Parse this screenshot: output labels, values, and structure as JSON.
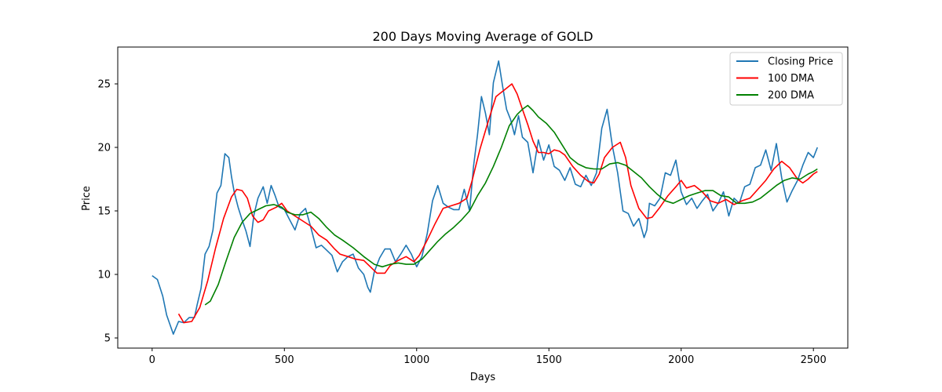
{
  "chart_data": {
    "type": "line",
    "title": "200 Days Moving Average of GOLD",
    "xlabel": "Days",
    "ylabel": "Price",
    "xlim": [
      -130,
      2630
    ],
    "ylim": [
      4.2,
      27.9
    ],
    "xticks": [
      0,
      500,
      1000,
      1500,
      2000,
      2500
    ],
    "yticks": [
      5,
      10,
      15,
      20,
      25
    ],
    "grid": false,
    "legend_position": "top-right",
    "series": [
      {
        "name": "Closing Price",
        "color": "#1f77b4",
        "points": [
          [
            0,
            9.9
          ],
          [
            20,
            9.6
          ],
          [
            40,
            8.3
          ],
          [
            55,
            6.8
          ],
          [
            65,
            6.2
          ],
          [
            80,
            5.3
          ],
          [
            100,
            6.3
          ],
          [
            120,
            6.2
          ],
          [
            140,
            6.6
          ],
          [
            160,
            6.6
          ],
          [
            170,
            7.6
          ],
          [
            185,
            8.9
          ],
          [
            200,
            11.6
          ],
          [
            215,
            12.2
          ],
          [
            230,
            13.5
          ],
          [
            245,
            16.4
          ],
          [
            260,
            17.0
          ],
          [
            275,
            19.5
          ],
          [
            290,
            19.2
          ],
          [
            300,
            17.7
          ],
          [
            310,
            16.5
          ],
          [
            325,
            15.3
          ],
          [
            340,
            14.3
          ],
          [
            355,
            13.4
          ],
          [
            370,
            12.2
          ],
          [
            385,
            14.7
          ],
          [
            400,
            16.0
          ],
          [
            420,
            16.9
          ],
          [
            435,
            15.6
          ],
          [
            450,
            17.0
          ],
          [
            465,
            16.2
          ],
          [
            480,
            15.3
          ],
          [
            500,
            15.1
          ],
          [
            520,
            14.3
          ],
          [
            540,
            13.5
          ],
          [
            560,
            14.8
          ],
          [
            580,
            15.2
          ],
          [
            600,
            13.7
          ],
          [
            620,
            12.1
          ],
          [
            640,
            12.3
          ],
          [
            660,
            11.9
          ],
          [
            680,
            11.5
          ],
          [
            700,
            10.2
          ],
          [
            720,
            11.0
          ],
          [
            740,
            11.4
          ],
          [
            760,
            11.6
          ],
          [
            780,
            10.5
          ],
          [
            800,
            10.0
          ],
          [
            815,
            9.0
          ],
          [
            825,
            8.6
          ],
          [
            840,
            10.2
          ],
          [
            860,
            11.3
          ],
          [
            880,
            12.0
          ],
          [
            900,
            12.0
          ],
          [
            920,
            11.0
          ],
          [
            940,
            11.6
          ],
          [
            960,
            12.3
          ],
          [
            980,
            11.6
          ],
          [
            1000,
            10.6
          ],
          [
            1020,
            11.4
          ],
          [
            1040,
            13.2
          ],
          [
            1060,
            15.8
          ],
          [
            1080,
            17.0
          ],
          [
            1100,
            15.6
          ],
          [
            1120,
            15.3
          ],
          [
            1140,
            15.1
          ],
          [
            1160,
            15.1
          ],
          [
            1180,
            16.7
          ],
          [
            1200,
            15.0
          ],
          [
            1215,
            18.5
          ],
          [
            1230,
            21.0
          ],
          [
            1245,
            24.0
          ],
          [
            1260,
            22.7
          ],
          [
            1275,
            21.0
          ],
          [
            1290,
            25.1
          ],
          [
            1310,
            26.8
          ],
          [
            1325,
            24.8
          ],
          [
            1340,
            23.0
          ],
          [
            1355,
            22.2
          ],
          [
            1370,
            21.0
          ],
          [
            1385,
            22.5
          ],
          [
            1400,
            20.8
          ],
          [
            1420,
            20.4
          ],
          [
            1440,
            18.0
          ],
          [
            1460,
            20.6
          ],
          [
            1480,
            19.0
          ],
          [
            1500,
            20.2
          ],
          [
            1520,
            18.5
          ],
          [
            1540,
            18.2
          ],
          [
            1560,
            17.4
          ],
          [
            1580,
            18.4
          ],
          [
            1600,
            17.1
          ],
          [
            1620,
            16.9
          ],
          [
            1640,
            17.8
          ],
          [
            1660,
            17.0
          ],
          [
            1680,
            18.0
          ],
          [
            1700,
            21.5
          ],
          [
            1720,
            23.0
          ],
          [
            1740,
            20.1
          ],
          [
            1760,
            18.0
          ],
          [
            1780,
            15.0
          ],
          [
            1800,
            14.8
          ],
          [
            1820,
            13.8
          ],
          [
            1840,
            14.4
          ],
          [
            1860,
            12.9
          ],
          [
            1870,
            13.5
          ],
          [
            1880,
            15.6
          ],
          [
            1900,
            15.4
          ],
          [
            1920,
            16.0
          ],
          [
            1940,
            18.0
          ],
          [
            1960,
            17.8
          ],
          [
            1980,
            19.0
          ],
          [
            2000,
            16.5
          ],
          [
            2020,
            15.5
          ],
          [
            2040,
            16.0
          ],
          [
            2060,
            15.2
          ],
          [
            2080,
            15.8
          ],
          [
            2100,
            16.3
          ],
          [
            2120,
            15.0
          ],
          [
            2140,
            15.6
          ],
          [
            2160,
            16.5
          ],
          [
            2180,
            14.6
          ],
          [
            2200,
            16.0
          ],
          [
            2220,
            15.6
          ],
          [
            2240,
            16.9
          ],
          [
            2260,
            17.1
          ],
          [
            2280,
            18.4
          ],
          [
            2300,
            18.6
          ],
          [
            2320,
            19.8
          ],
          [
            2340,
            18.2
          ],
          [
            2360,
            20.3
          ],
          [
            2380,
            17.6
          ],
          [
            2400,
            15.7
          ],
          [
            2420,
            16.6
          ],
          [
            2440,
            17.4
          ],
          [
            2460,
            18.6
          ],
          [
            2480,
            19.6
          ],
          [
            2500,
            19.2
          ],
          [
            2515,
            20.0
          ]
        ]
      },
      {
        "name": "100 DMA",
        "color": "#ff0000",
        "points": [
          [
            100,
            6.9
          ],
          [
            120,
            6.2
          ],
          [
            150,
            6.3
          ],
          [
            180,
            7.4
          ],
          [
            210,
            9.5
          ],
          [
            240,
            12.1
          ],
          [
            270,
            14.4
          ],
          [
            300,
            16.1
          ],
          [
            320,
            16.7
          ],
          [
            340,
            16.6
          ],
          [
            360,
            16.0
          ],
          [
            380,
            14.6
          ],
          [
            400,
            14.1
          ],
          [
            420,
            14.3
          ],
          [
            440,
            15.0
          ],
          [
            470,
            15.3
          ],
          [
            490,
            15.6
          ],
          [
            510,
            15.0
          ],
          [
            540,
            14.6
          ],
          [
            570,
            14.2
          ],
          [
            600,
            13.8
          ],
          [
            630,
            13.1
          ],
          [
            660,
            12.7
          ],
          [
            690,
            12.0
          ],
          [
            710,
            11.6
          ],
          [
            740,
            11.4
          ],
          [
            770,
            11.2
          ],
          [
            800,
            11.1
          ],
          [
            830,
            10.5
          ],
          [
            850,
            10.1
          ],
          [
            880,
            10.1
          ],
          [
            900,
            10.7
          ],
          [
            930,
            11.1
          ],
          [
            960,
            11.4
          ],
          [
            990,
            11.0
          ],
          [
            1010,
            11.5
          ],
          [
            1040,
            12.7
          ],
          [
            1070,
            14.0
          ],
          [
            1100,
            15.2
          ],
          [
            1130,
            15.4
          ],
          [
            1160,
            15.6
          ],
          [
            1190,
            16.0
          ],
          [
            1210,
            17.4
          ],
          [
            1240,
            19.9
          ],
          [
            1270,
            22.0
          ],
          [
            1300,
            24.0
          ],
          [
            1330,
            24.5
          ],
          [
            1360,
            25.0
          ],
          [
            1380,
            24.2
          ],
          [
            1400,
            23.0
          ],
          [
            1420,
            21.8
          ],
          [
            1440,
            20.5
          ],
          [
            1460,
            19.6
          ],
          [
            1480,
            19.6
          ],
          [
            1500,
            19.5
          ],
          [
            1520,
            19.8
          ],
          [
            1540,
            19.7
          ],
          [
            1560,
            19.4
          ],
          [
            1590,
            18.5
          ],
          [
            1620,
            17.8
          ],
          [
            1650,
            17.3
          ],
          [
            1670,
            17.2
          ],
          [
            1690,
            17.9
          ],
          [
            1710,
            19.2
          ],
          [
            1740,
            20.0
          ],
          [
            1770,
            20.4
          ],
          [
            1790,
            19.2
          ],
          [
            1810,
            17.0
          ],
          [
            1840,
            15.2
          ],
          [
            1870,
            14.4
          ],
          [
            1890,
            14.5
          ],
          [
            1920,
            15.3
          ],
          [
            1950,
            16.2
          ],
          [
            1980,
            16.9
          ],
          [
            2000,
            17.4
          ],
          [
            2020,
            16.8
          ],
          [
            2050,
            17.0
          ],
          [
            2080,
            16.5
          ],
          [
            2110,
            15.8
          ],
          [
            2140,
            15.6
          ],
          [
            2170,
            15.9
          ],
          [
            2200,
            15.5
          ],
          [
            2230,
            15.8
          ],
          [
            2260,
            16.0
          ],
          [
            2290,
            16.7
          ],
          [
            2320,
            17.4
          ],
          [
            2350,
            18.3
          ],
          [
            2380,
            18.9
          ],
          [
            2410,
            18.4
          ],
          [
            2440,
            17.5
          ],
          [
            2460,
            17.2
          ],
          [
            2480,
            17.5
          ],
          [
            2500,
            17.9
          ],
          [
            2515,
            18.1
          ]
        ]
      },
      {
        "name": "200 DMA",
        "color": "#008000",
        "points": [
          [
            200,
            7.6
          ],
          [
            220,
            7.9
          ],
          [
            250,
            9.2
          ],
          [
            280,
            11.1
          ],
          [
            310,
            12.9
          ],
          [
            340,
            14.1
          ],
          [
            370,
            14.8
          ],
          [
            400,
            15.1
          ],
          [
            430,
            15.4
          ],
          [
            460,
            15.5
          ],
          [
            490,
            15.3
          ],
          [
            510,
            14.9
          ],
          [
            540,
            14.7
          ],
          [
            570,
            14.7
          ],
          [
            600,
            14.9
          ],
          [
            630,
            14.4
          ],
          [
            660,
            13.7
          ],
          [
            690,
            13.1
          ],
          [
            720,
            12.7
          ],
          [
            760,
            12.1
          ],
          [
            800,
            11.4
          ],
          [
            840,
            10.8
          ],
          [
            870,
            10.6
          ],
          [
            900,
            10.8
          ],
          [
            930,
            10.9
          ],
          [
            960,
            10.8
          ],
          [
            990,
            10.8
          ],
          [
            1020,
            11.2
          ],
          [
            1050,
            11.9
          ],
          [
            1080,
            12.6
          ],
          [
            1110,
            13.2
          ],
          [
            1140,
            13.7
          ],
          [
            1170,
            14.3
          ],
          [
            1200,
            15.0
          ],
          [
            1230,
            16.2
          ],
          [
            1260,
            17.2
          ],
          [
            1290,
            18.5
          ],
          [
            1320,
            20.0
          ],
          [
            1350,
            21.7
          ],
          [
            1380,
            22.6
          ],
          [
            1400,
            23.0
          ],
          [
            1420,
            23.3
          ],
          [
            1440,
            22.9
          ],
          [
            1460,
            22.4
          ],
          [
            1490,
            21.9
          ],
          [
            1520,
            21.2
          ],
          [
            1550,
            20.2
          ],
          [
            1580,
            19.2
          ],
          [
            1610,
            18.7
          ],
          [
            1640,
            18.4
          ],
          [
            1670,
            18.3
          ],
          [
            1700,
            18.3
          ],
          [
            1730,
            18.7
          ],
          [
            1760,
            18.8
          ],
          [
            1790,
            18.6
          ],
          [
            1820,
            18.1
          ],
          [
            1850,
            17.6
          ],
          [
            1880,
            16.9
          ],
          [
            1910,
            16.3
          ],
          [
            1940,
            15.8
          ],
          [
            1970,
            15.6
          ],
          [
            2000,
            15.9
          ],
          [
            2030,
            16.2
          ],
          [
            2060,
            16.4
          ],
          [
            2090,
            16.6
          ],
          [
            2120,
            16.6
          ],
          [
            2150,
            16.2
          ],
          [
            2180,
            16.1
          ],
          [
            2210,
            15.6
          ],
          [
            2240,
            15.6
          ],
          [
            2270,
            15.7
          ],
          [
            2300,
            16.0
          ],
          [
            2330,
            16.5
          ],
          [
            2360,
            17.0
          ],
          [
            2390,
            17.4
          ],
          [
            2420,
            17.6
          ],
          [
            2450,
            17.5
          ],
          [
            2480,
            17.9
          ],
          [
            2500,
            18.1
          ],
          [
            2515,
            18.3
          ]
        ]
      }
    ]
  }
}
